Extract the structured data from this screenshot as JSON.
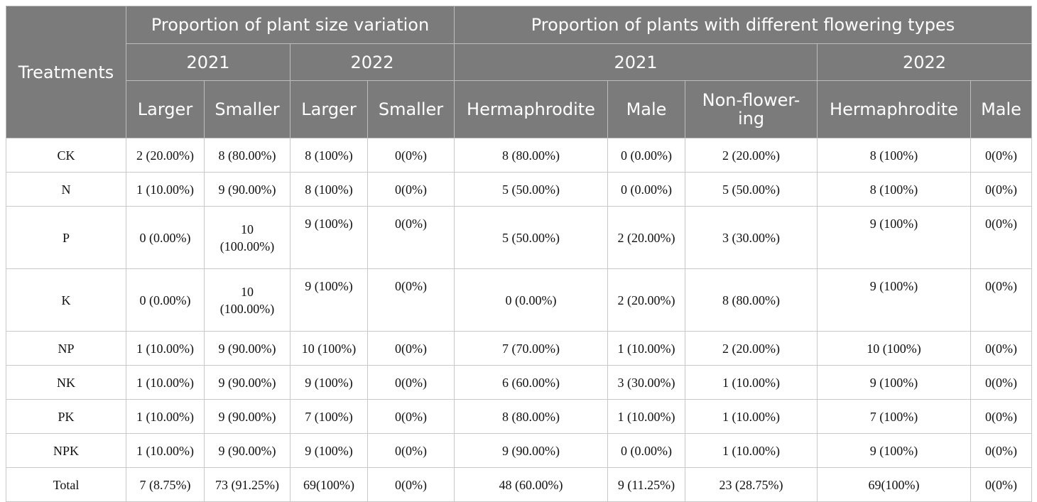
{
  "header": {
    "treatments": "Treatments",
    "group_size": "Proportion of plant size variation",
    "group_flower": "Proportion of plants with different flowering types",
    "year_2021": "2021",
    "year_2022": "2022",
    "larger": "Larger",
    "smaller": "Smaller",
    "hermaphrodite": "Hermaphrodite",
    "male": "Male",
    "non_flowering_1": "Non-flower-",
    "non_flowering_2": "ing"
  },
  "rows": [
    {
      "t": "CK",
      "l21": "2 (20.00%)",
      "s21": "8 (80.00%)",
      "l22": "8 (100%)",
      "s22": "0(0%)",
      "h21": "8 (80.00%)",
      "m21": "0 (0.00%)",
      "n21": "2 (20.00%)",
      "h22": "8 (100%)",
      "m22": "0(0%)"
    },
    {
      "t": "N",
      "l21": "1 (10.00%)",
      "s21": "9 (90.00%)",
      "l22": "8 (100%)",
      "s22": "0(0%)",
      "h21": "5 (50.00%)",
      "m21": "0 (0.00%)",
      "n21": "5 (50.00%)",
      "h22": "8 (100%)",
      "m22": "0(0%)"
    },
    {
      "t": "P",
      "l21": "0 (0.00%)",
      "s21a": "10",
      "s21b": "(100.00%)",
      "l22": "9 (100%)",
      "s22": "0(0%)",
      "h21": "5 (50.00%)",
      "m21": "2 (20.00%)",
      "n21": "3 (30.00%)",
      "h22": "9 (100%)",
      "m22": "0(0%)"
    },
    {
      "t": "K",
      "l21": "0 (0.00%)",
      "s21a": "10",
      "s21b": "(100.00%)",
      "l22": "9 (100%)",
      "s22": "0(0%)",
      "h21": "0 (0.00%)",
      "m21": "2 (20.00%)",
      "n21": "8 (80.00%)",
      "h22": "9 (100%)",
      "m22": "0(0%)"
    },
    {
      "t": "NP",
      "l21": "1 (10.00%)",
      "s21": "9 (90.00%)",
      "l22": "10 (100%)",
      "s22": "0(0%)",
      "h21": "7 (70.00%)",
      "m21": "1 (10.00%)",
      "n21": "2 (20.00%)",
      "h22": "10 (100%)",
      "m22": "0(0%)"
    },
    {
      "t": "NK",
      "l21": "1 (10.00%)",
      "s21": "9 (90.00%)",
      "l22": "9 (100%)",
      "s22": "0(0%)",
      "h21": "6 (60.00%)",
      "m21": "3 (30.00%)",
      "n21": "1 (10.00%)",
      "h22": "9 (100%)",
      "m22": "0(0%)"
    },
    {
      "t": "PK",
      "l21": "1 (10.00%)",
      "s21": "9 (90.00%)",
      "l22": "7 (100%)",
      "s22": "0(0%)",
      "h21": "8 (80.00%)",
      "m21": "1 (10.00%)",
      "n21": "1 (10.00%)",
      "h22": "7 (100%)",
      "m22": "0(0%)"
    },
    {
      "t": "NPK",
      "l21": "1 (10.00%)",
      "s21": "9 (90.00%)",
      "l22": "9 (100%)",
      "s22": "0(0%)",
      "h21": "9 (90.00%)",
      "m21": "0 (0.00%)",
      "n21": "1 (10.00%)",
      "h22": "9 (100%)",
      "m22": "0(0%)"
    },
    {
      "t": "Total",
      "l21": "7 (8.75%)",
      "s21": "73 (91.25%)",
      "l22": "69(100%)",
      "s22": "0(0%)",
      "h21": "48 (60.00%)",
      "m21": "9 (11.25%)",
      "n21": "23 (28.75%)",
      "h22": "69(100%)",
      "m22": "0(0%)"
    }
  ]
}
